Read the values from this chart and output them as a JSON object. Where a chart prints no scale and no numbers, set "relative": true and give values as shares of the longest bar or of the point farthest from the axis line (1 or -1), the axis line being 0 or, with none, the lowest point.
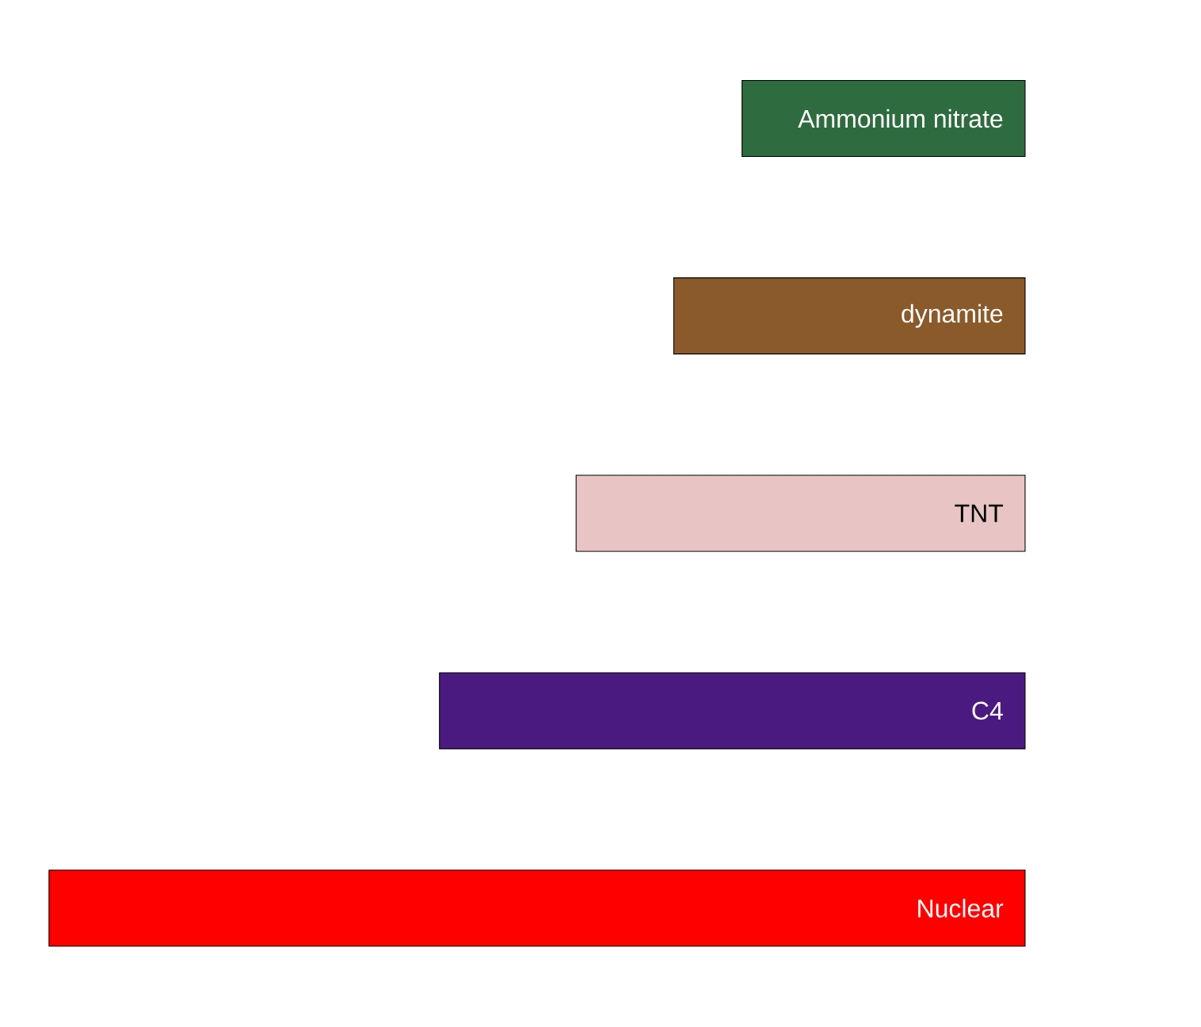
{
  "chart_data": {
    "type": "bar",
    "orientation": "horizontal",
    "relative": true,
    "categories": [
      "Ammonium nitrate",
      "dynamite",
      "TNT",
      "C4",
      "Nuclear"
    ],
    "values": [
      -0.29,
      -0.36,
      -0.46,
      -0.6,
      -1
    ],
    "colors": [
      "#2e6b3f",
      "#8b5a2b",
      "#e8c4c4",
      "#4b1a80",
      "#ff0000"
    ]
  }
}
